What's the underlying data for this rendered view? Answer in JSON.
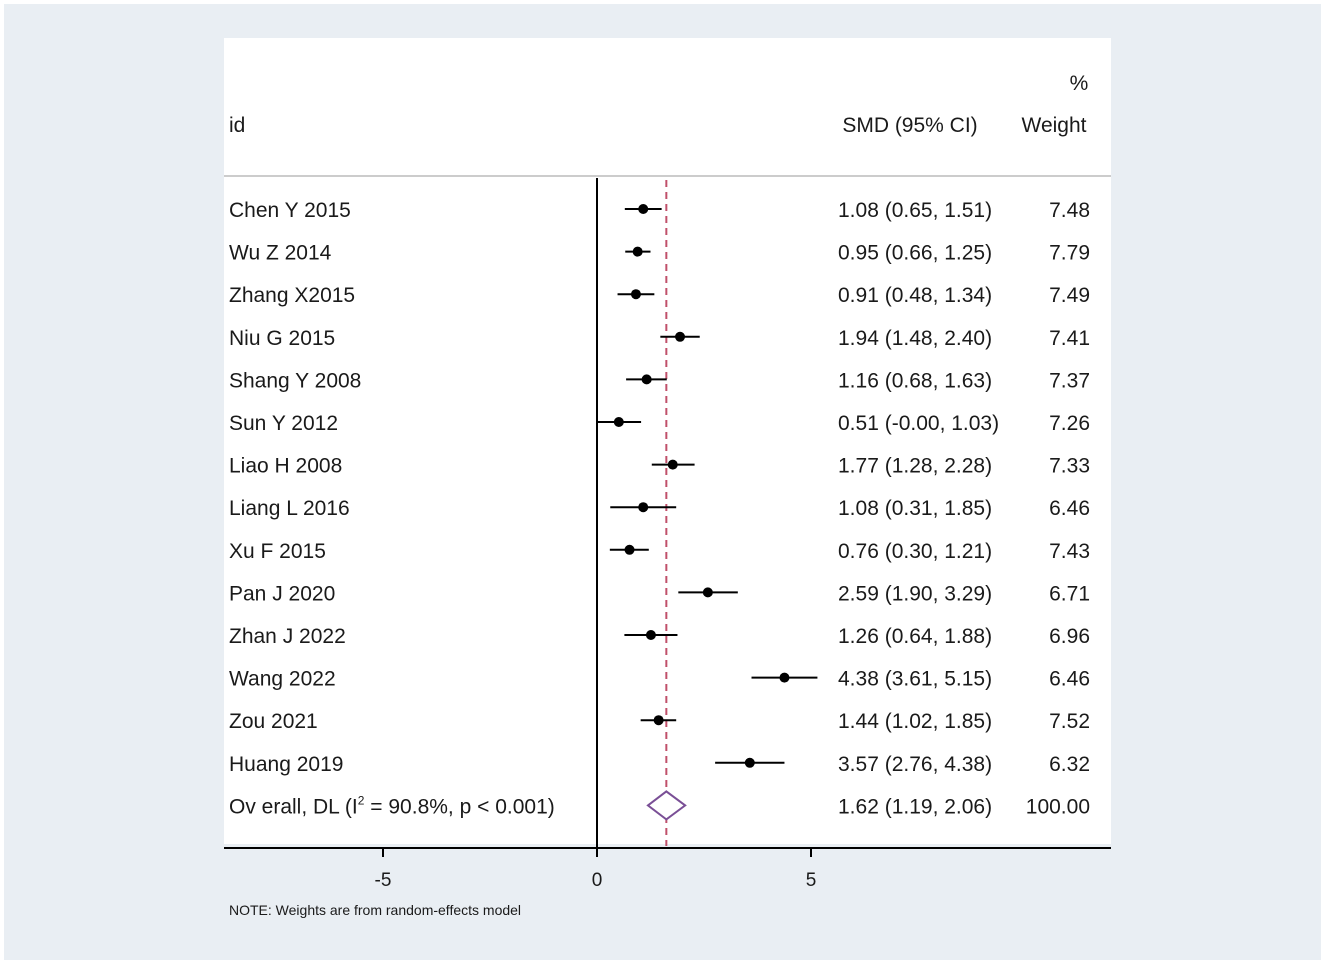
{
  "header": {
    "id_label": "id",
    "smd_label": "SMD (95% CI)",
    "weight_label_top": "%",
    "weight_label": "Weight"
  },
  "note": "NOTE: Weights are from random-effects model",
  "chart_data": {
    "type": "forest",
    "title": "",
    "xlabel": "",
    "xticks": [
      -5,
      0,
      5
    ],
    "xlim": [
      -8.8,
      11.8
    ],
    "null_line": 0,
    "overall_line": 1.62,
    "marker_color": "#000000",
    "overall_line_color": "#c0506a",
    "studies": [
      {
        "id": "Chen Y 2015",
        "smd": 1.08,
        "lo": 0.65,
        "hi": 1.51,
        "ci_text": "1.08 (0.65, 1.51)",
        "weight": "7.48"
      },
      {
        "id": "Wu Z 2014",
        "smd": 0.95,
        "lo": 0.66,
        "hi": 1.25,
        "ci_text": "0.95 (0.66, 1.25)",
        "weight": "7.79"
      },
      {
        "id": "Zhang X2015",
        "smd": 0.91,
        "lo": 0.48,
        "hi": 1.34,
        "ci_text": "0.91 (0.48, 1.34)",
        "weight": "7.49"
      },
      {
        "id": "Niu G 2015",
        "smd": 1.94,
        "lo": 1.48,
        "hi": 2.4,
        "ci_text": "1.94 (1.48, 2.40)",
        "weight": "7.41"
      },
      {
        "id": "Shang Y 2008",
        "smd": 1.16,
        "lo": 0.68,
        "hi": 1.63,
        "ci_text": "1.16 (0.68, 1.63)",
        "weight": "7.37"
      },
      {
        "id": "Sun Y 2012",
        "smd": 0.51,
        "lo": -0.0,
        "hi": 1.03,
        "ci_text": "0.51 (-0.00, 1.03)",
        "weight": "7.26"
      },
      {
        "id": "Liao H 2008",
        "smd": 1.77,
        "lo": 1.28,
        "hi": 2.28,
        "ci_text": "1.77 (1.28, 2.28)",
        "weight": "7.33"
      },
      {
        "id": "Liang L 2016",
        "smd": 1.08,
        "lo": 0.31,
        "hi": 1.85,
        "ci_text": "1.08 (0.31, 1.85)",
        "weight": "6.46"
      },
      {
        "id": "Xu F 2015",
        "smd": 0.76,
        "lo": 0.3,
        "hi": 1.21,
        "ci_text": "0.76 (0.30, 1.21)",
        "weight": "7.43"
      },
      {
        "id": "Pan J 2020",
        "smd": 2.59,
        "lo": 1.9,
        "hi": 3.29,
        "ci_text": "2.59 (1.90, 3.29)",
        "weight": "6.71"
      },
      {
        "id": "Zhan J 2022",
        "smd": 1.26,
        "lo": 0.64,
        "hi": 1.88,
        "ci_text": "1.26 (0.64, 1.88)",
        "weight": "6.96"
      },
      {
        "id": "Wang 2022",
        "smd": 4.38,
        "lo": 3.61,
        "hi": 5.15,
        "ci_text": "4.38 (3.61, 5.15)",
        "weight": "6.46"
      },
      {
        "id": "Zou 2021",
        "smd": 1.44,
        "lo": 1.02,
        "hi": 1.85,
        "ci_text": "1.44 (1.02, 1.85)",
        "weight": "7.52"
      },
      {
        "id": "Huang 2019",
        "smd": 3.57,
        "lo": 2.76,
        "hi": 4.38,
        "ci_text": "3.57 (2.76, 4.38)",
        "weight": "6.32"
      }
    ],
    "overall": {
      "id_prefix": "Ov erall, DL (I",
      "id_sup": "2",
      "id_suffix": " = 90.8%, p < 0.001)",
      "smd": 1.62,
      "lo": 1.19,
      "hi": 2.06,
      "ci_text": "1.62 (1.19, 2.06)",
      "weight": "100.00"
    }
  }
}
